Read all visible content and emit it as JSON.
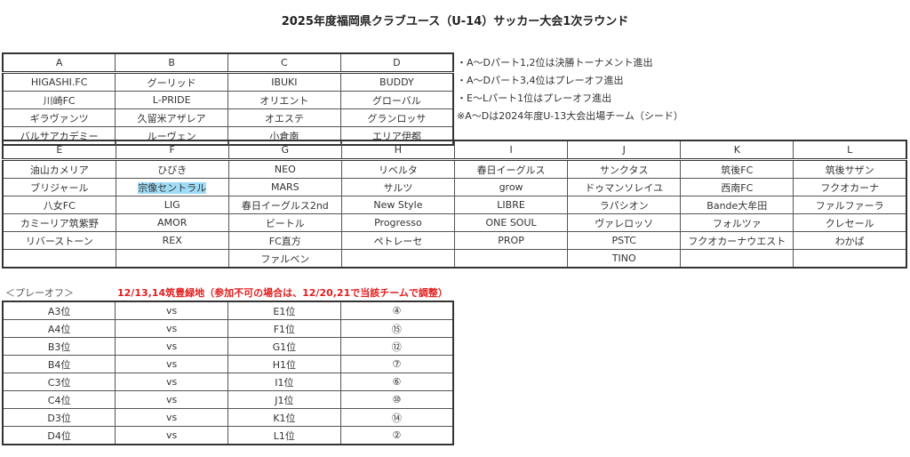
{
  "title": "2025年度福岡県クラブユース（U-14）サッカー大会1次ラウンド",
  "group_ad": {
    "headers": [
      "A",
      "B",
      "C",
      "D"
    ],
    "rows": [
      [
        "HIGASHI.FC",
        "グーリッド",
        "IBUKI",
        "BUDDY"
      ],
      [
        "川崎FC",
        "L-PRIDE",
        "オリエント",
        "グローバル"
      ],
      [
        "ギラヴァンツ",
        "久留米アザレア",
        "オエステ",
        "グランロッサ"
      ],
      [
        "バルサアカデミー",
        "ルーヴェン",
        "小倉南",
        "エリア伊都"
      ]
    ]
  },
  "notes": [
    "・A～Dパート1,2位は決勝トーナメント進出",
    "・A～Dパート3,4位はプレーオフ進出",
    "・E～Lパート1位はプレーオフ進出",
    "※A～Dは2024年度U-13大会出場チーム（シード）"
  ],
  "group_el": {
    "headers": [
      "E",
      "F",
      "G",
      "H",
      "I",
      "J",
      "K",
      "L"
    ],
    "rows": [
      [
        "油山カメリア",
        "ひびき",
        "NEO",
        "リベルタ",
        "春日イーグルス",
        "サンクタス",
        "筑後FC",
        "筑後サザン"
      ],
      [
        "ブリジャール",
        "宗像セントラル",
        "MARS",
        "サルツ",
        "grow",
        "ドゥマンソレイユ",
        "西南FC",
        "フクオカーナ"
      ],
      [
        "八女FC",
        "LIG",
        "春日イーグルス2nd",
        "New Style",
        "LIBRE",
        "ラパシオン",
        "Bande大牟田",
        "ファルファーラ"
      ],
      [
        "カミーリア筑紫野",
        "AMOR",
        "ビートル",
        "Progresso",
        "ONE SOUL",
        "ヴァレロッソ",
        "フォルツァ",
        "クレセール"
      ],
      [
        "リバーストーン",
        "REX",
        "FC直方",
        "ペトレーセ",
        "PROP",
        "PSTC",
        "フクオカーナウエスト",
        "わかば"
      ],
      [
        "",
        "",
        "ファルベン",
        "",
        "",
        "TINO",
        "",
        ""
      ]
    ],
    "highlighted_cell": "宗像セントラル",
    "highlight_color": "#9fdcf5"
  },
  "playoff": {
    "label": "＜プレーオフ＞",
    "note": "12/13,14筑豊緑地（参加不可の場合は、12/20,21で当該チームで調整）",
    "note_color": "#e02020",
    "rows": [
      [
        "A3位",
        "vs",
        "E1位",
        "④"
      ],
      [
        "A4位",
        "vs",
        "F1位",
        "⑮"
      ],
      [
        "B3位",
        "vs",
        "G1位",
        "⑫"
      ],
      [
        "B4位",
        "vs",
        "H1位",
        "⑦"
      ],
      [
        "C3位",
        "vs",
        "I1位",
        "⑥"
      ],
      [
        "C4位",
        "vs",
        "J1位",
        "⑩"
      ],
      [
        "D3位",
        "vs",
        "K1位",
        "⑭"
      ],
      [
        "D4位",
        "vs",
        "L1位",
        "②"
      ]
    ]
  }
}
